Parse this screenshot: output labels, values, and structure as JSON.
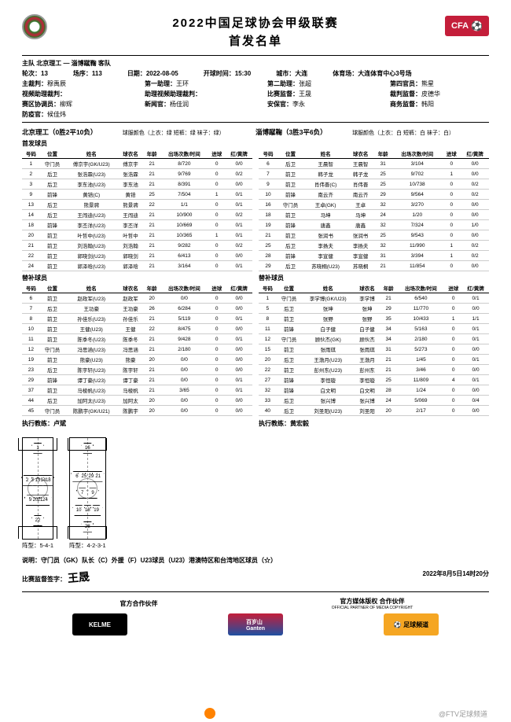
{
  "title": "2022中国足球协会甲级联赛",
  "subtitle": "首发名单",
  "logo_r": "CFA",
  "match": {
    "teams_line": "主队 北京理工 — 淄博蹴鞠 客队",
    "round_label": "轮次：",
    "round": "13",
    "matchno_label": "场序：",
    "matchno": "113",
    "date_label": "日期：",
    "date": "2022-08-05",
    "kickoff_label": "开球时间：",
    "kickoff": "15:30",
    "city_label": "城市：",
    "city": "大连",
    "venue_label": "体育场：",
    "venue": "大连体育中心3号场"
  },
  "officials": [
    {
      "k": "主裁判：",
      "v": "穆禹辰"
    },
    {
      "k": "第一助理：",
      "v": "王环"
    },
    {
      "k": "第二助理：",
      "v": "张超"
    },
    {
      "k": "第四官员：",
      "v": "熊星"
    },
    {
      "k": "视频助理裁判：",
      "v": ""
    },
    {
      "k": "助理视频助理裁判：",
      "v": ""
    },
    {
      "k": "比赛监督：",
      "v": "王晟"
    },
    {
      "k": "裁判监督：",
      "v": "皮德华"
    },
    {
      "k": "赛区协调员：",
      "v": "柳辉"
    },
    {
      "k": "新闻官：",
      "v": "杨佳润"
    },
    {
      "k": "安保官：",
      "v": "李永"
    },
    {
      "k": "商务监督：",
      "v": "韩阳"
    },
    {
      "k": "防疫官：",
      "v": "候佳炜"
    }
  ],
  "home": {
    "name": "北京理工（0胜2平10负）",
    "kit": "球服颜色（上衣：绿 短裤：绿 袜子：绿）",
    "hdr": [
      "号码",
      "位置",
      "姓名",
      "球衣名",
      "年龄",
      "出场次数/时间",
      "进球",
      "红/黄牌"
    ],
    "starters": [
      [
        "1",
        "守门员",
        "傅京宇(GK/U23)",
        "傅京宇",
        "21",
        "8/720",
        "0",
        "0/0"
      ],
      [
        "2",
        "后卫",
        "张浩霖(U23)",
        "张浩霖",
        "21",
        "9/769",
        "0",
        "0/2"
      ],
      [
        "3",
        "后卫",
        "李东池(U23)",
        "李东池",
        "21",
        "8/391",
        "0",
        "0/0"
      ],
      [
        "9",
        "前锋",
        "黄锫(C)",
        "黄锫",
        "25",
        "7/504",
        "1",
        "0/1"
      ],
      [
        "13",
        "后卫",
        "熊景骋",
        "熊景骋",
        "22",
        "1/1",
        "0",
        "0/1"
      ],
      [
        "14",
        "后卫",
        "王闯迪(U23)",
        "王闯迪",
        "21",
        "10/900",
        "0",
        "0/2"
      ],
      [
        "18",
        "前锋",
        "李丕洋(U23)",
        "李丕洋",
        "21",
        "10/669",
        "0",
        "0/1"
      ],
      [
        "20",
        "前卫",
        "叶哲中(U23)",
        "叶哲中",
        "21",
        "10/365",
        "1",
        "0/1"
      ],
      [
        "21",
        "前卫",
        "刘浩翰(U23)",
        "刘浩翰",
        "21",
        "9/282",
        "0",
        "0/2"
      ],
      [
        "22",
        "前卫",
        "郭晓剑(U23)",
        "郭晓剑",
        "21",
        "6/413",
        "0",
        "0/0"
      ],
      [
        "24",
        "前卫",
        "郭泽晗(U23)",
        "郭泽晗",
        "21",
        "3/164",
        "0",
        "0/1"
      ]
    ],
    "subs": [
      [
        "6",
        "前卫",
        "赵政军(U23)",
        "赵政军",
        "20",
        "0/0",
        "0",
        "0/0"
      ],
      [
        "7",
        "后卫",
        "王功豪",
        "王功豪",
        "26",
        "6/284",
        "0",
        "0/0"
      ],
      [
        "8",
        "前卫",
        "孙佳乐(U23)",
        "孙佳乐",
        "21",
        "5/119",
        "0",
        "0/1"
      ],
      [
        "10",
        "前卫",
        "王健(U23)",
        "王健",
        "22",
        "8/475",
        "0",
        "0/0"
      ],
      [
        "11",
        "前卫",
        "陈季冬(U23)",
        "陈季冬",
        "21",
        "9/428",
        "0",
        "0/1"
      ],
      [
        "12",
        "守门员",
        "冯思涵(U23)",
        "冯思涵",
        "21",
        "2/180",
        "0",
        "0/0"
      ],
      [
        "19",
        "前卫",
        "熊豪(U23)",
        "熊豪",
        "20",
        "0/0",
        "0",
        "0/0"
      ],
      [
        "23",
        "后卫",
        "陈宇轩(U23)",
        "陈宇轩",
        "21",
        "0/0",
        "0",
        "0/0"
      ],
      [
        "29",
        "前锋",
        "谭丁豪(U23)",
        "谭丁豪",
        "21",
        "0/0",
        "0",
        "0/1"
      ],
      [
        "37",
        "前卫",
        "马棱帆(U23)",
        "马棱帆",
        "21",
        "3/65",
        "0",
        "0/1"
      ],
      [
        "44",
        "后卫",
        "加阿太(U23)",
        "加阿太",
        "20",
        "0/0",
        "0",
        "0/0"
      ],
      [
        "45",
        "守门员",
        "陈鹏宇(GK/U21)",
        "陈鹏宇",
        "20",
        "0/0",
        "0",
        "0/0"
      ]
    ],
    "coach_label": "执行教练：",
    "coach": "卢斌",
    "formation_label": "阵型：",
    "formation": "5-4-1",
    "shirts": [
      [
        50,
        10,
        "1"
      ],
      [
        15,
        42,
        "2"
      ],
      [
        32,
        42,
        "3"
      ],
      [
        50,
        42,
        "13"
      ],
      [
        68,
        42,
        "14"
      ],
      [
        85,
        42,
        "18"
      ],
      [
        25,
        62,
        "9"
      ],
      [
        42,
        62,
        "20"
      ],
      [
        58,
        62,
        "21"
      ],
      [
        75,
        62,
        "24"
      ],
      [
        50,
        82,
        "22"
      ]
    ]
  },
  "away": {
    "name": "淄博蹴鞠（3胜3平6负）",
    "kit": "球服颜色（上衣：白 短裤：白 袜子：白）",
    "hdr": [
      "号码",
      "位置",
      "姓名",
      "球衣名",
      "年龄",
      "出场次数/时间",
      "进球",
      "红/黄牌"
    ],
    "starters": [
      [
        "6",
        "后卫",
        "王晨智",
        "王晨智",
        "31",
        "3/104",
        "0",
        "0/0"
      ],
      [
        "7",
        "前卫",
        "韩子龙",
        "韩子龙",
        "25",
        "9/702",
        "1",
        "0/0"
      ],
      [
        "9",
        "前卫",
        "肖伟晋(C)",
        "肖伟晋",
        "25",
        "10/738",
        "0",
        "0/2"
      ],
      [
        "10",
        "前锋",
        "南云齐",
        "南云齐",
        "29",
        "9/564",
        "0",
        "0/2"
      ],
      [
        "16",
        "守门员",
        "王卓(GK)",
        "王卓",
        "32",
        "3/270",
        "0",
        "0/0"
      ],
      [
        "18",
        "前卫",
        "马坤",
        "马坤",
        "24",
        "1/20",
        "0",
        "0/0"
      ],
      [
        "19",
        "前锋",
        "唐鑫",
        "唐鑫",
        "32",
        "7/324",
        "0",
        "1/0"
      ],
      [
        "21",
        "前卫",
        "张润书",
        "张润书",
        "25",
        "9/543",
        "0",
        "0/0"
      ],
      [
        "25",
        "后卫",
        "李扬夫",
        "李扬夫",
        "32",
        "11/990",
        "1",
        "0/2"
      ],
      [
        "28",
        "前锋",
        "李宣健",
        "李宣健",
        "31",
        "3/394",
        "1",
        "0/2"
      ],
      [
        "29",
        "后卫",
        "苏晓桐(U23)",
        "苏晓桐",
        "21",
        "11/854",
        "0",
        "0/0"
      ]
    ],
    "subs": [
      [
        "1",
        "守门员",
        "李学博(GK/U23)",
        "李学博",
        "21",
        "6/540",
        "0",
        "0/1"
      ],
      [
        "5",
        "后卫",
        "张坤",
        "张坤",
        "29",
        "11/770",
        "0",
        "0/0"
      ],
      [
        "8",
        "前卫",
        "张野",
        "张野",
        "35",
        "10/433",
        "1",
        "1/1"
      ],
      [
        "11",
        "前锋",
        "白子健",
        "白子健",
        "34",
        "5/163",
        "0",
        "0/1"
      ],
      [
        "12",
        "守门员",
        "顾伙杰(GK)",
        "顾伙杰",
        "34",
        "2/180",
        "0",
        "0/1"
      ],
      [
        "15",
        "前卫",
        "张雨琪",
        "张雨琪",
        "31",
        "5/273",
        "0",
        "0/0"
      ],
      [
        "20",
        "后卫",
        "王渤月(U23)",
        "王渤月",
        "21",
        "1/45",
        "0",
        "0/1"
      ],
      [
        "22",
        "前卫",
        "彭州东(U23)",
        "彭州东",
        "21",
        "3/46",
        "0",
        "0/0"
      ],
      [
        "27",
        "前锋",
        "李恒璇",
        "李恒璇",
        "25",
        "11/809",
        "4",
        "0/1"
      ],
      [
        "32",
        "前锋",
        "白文明",
        "白文明",
        "28",
        "1/24",
        "0",
        "0/0"
      ],
      [
        "33",
        "后卫",
        "张兴博",
        "张兴博",
        "24",
        "5/069",
        "0",
        "0/4"
      ],
      [
        "40",
        "后卫",
        "刘圣阳(U23)",
        "刘圣阳",
        "20",
        "2/17",
        "0",
        "0/0"
      ]
    ],
    "coach_label": "执行教练：",
    "coach": "黄宏毅",
    "formation_label": "阵型：",
    "formation": "4-2-3-1",
    "shirts": [
      [
        50,
        10,
        "16"
      ],
      [
        20,
        38,
        "6"
      ],
      [
        40,
        38,
        "25"
      ],
      [
        60,
        38,
        "29"
      ],
      [
        80,
        38,
        "21"
      ],
      [
        35,
        55,
        "7"
      ],
      [
        65,
        55,
        "9"
      ],
      [
        25,
        72,
        "10"
      ],
      [
        50,
        72,
        "18"
      ],
      [
        75,
        72,
        "19"
      ],
      [
        50,
        88,
        "28"
      ]
    ]
  },
  "section": {
    "starters": "首发球员",
    "subs": "替补球员"
  },
  "notes": "说明：守门员（GK）队长（C）外援（F）U23球员（U23）港澳特区和台湾地区球员（☆）",
  "sig_label": "比赛监督签字：",
  "sig": "王晟",
  "dt": "2022年8月5日14时20分",
  "partners": {
    "l": "官方合作伙伴",
    "r": "官方媒体版权 合作伙伴",
    "r2": "OFFICIAL PARTNER OF MEDIA COPYRIGHT",
    "kelme": "KELME",
    "ganten": "百岁山\nGanten",
    "ftv": "⚽ 足球频道"
  },
  "watermark": "@FTV足球频道"
}
